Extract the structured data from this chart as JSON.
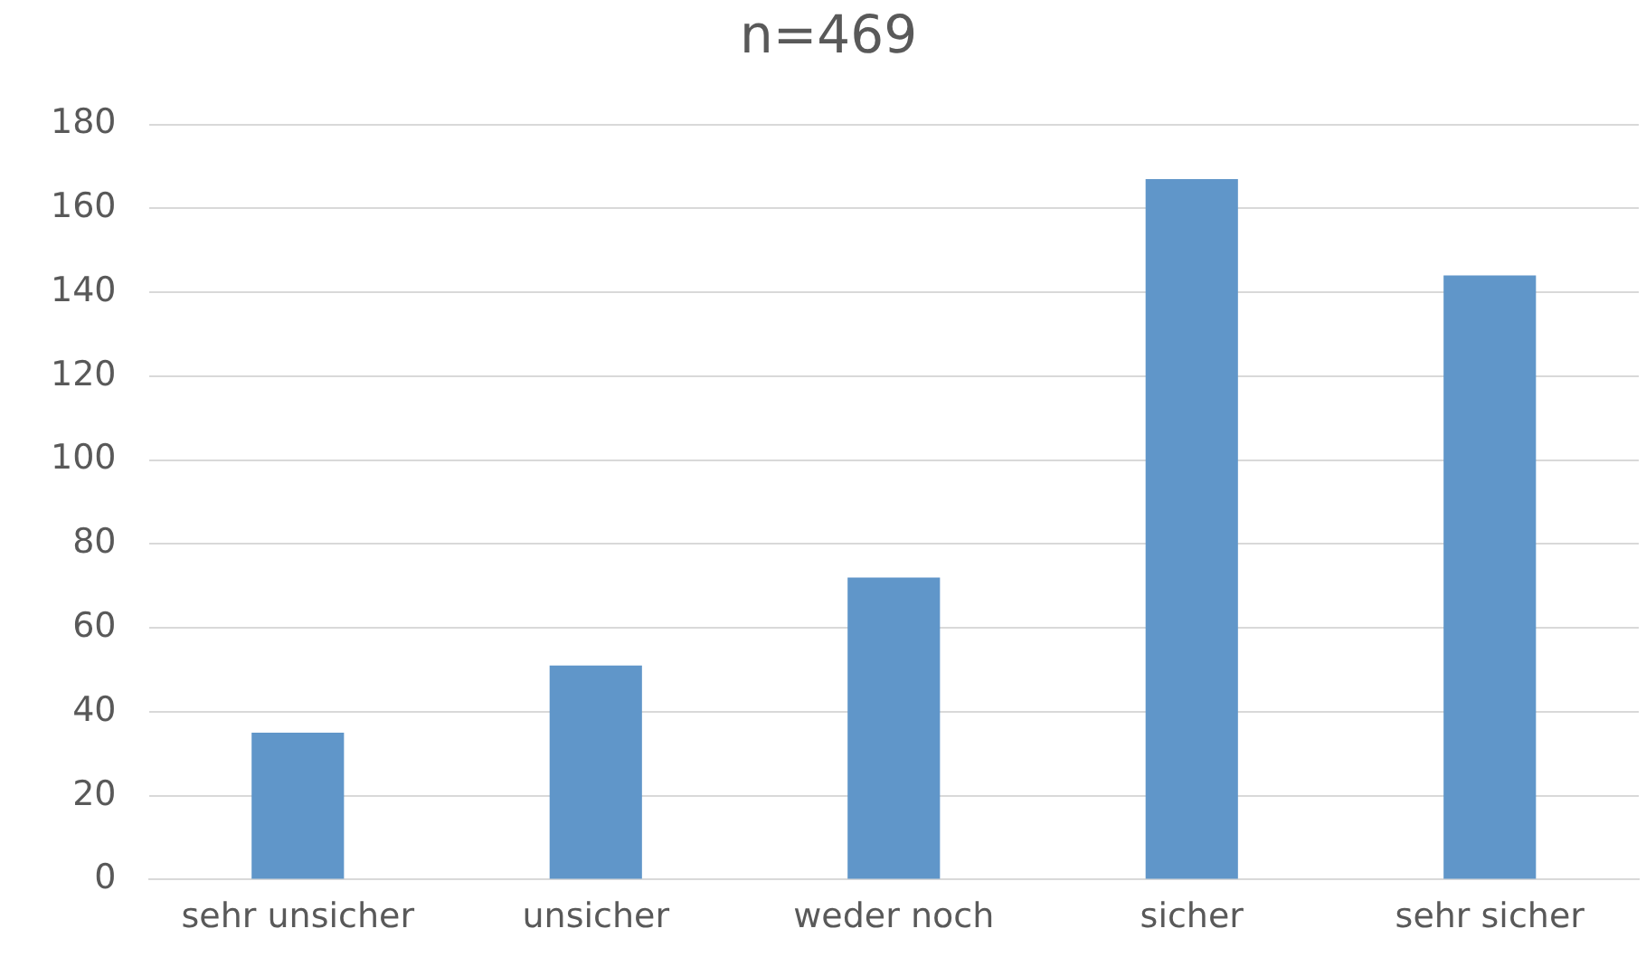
{
  "chart_data": {
    "type": "bar",
    "title": "n=469",
    "categories": [
      "sehr unsicher",
      "unsicher",
      "weder noch",
      "sicher",
      "sehr sicher"
    ],
    "values": [
      35,
      51,
      72,
      167,
      144
    ],
    "color": "#6096c9",
    "ylim": [
      0,
      180
    ],
    "yticks": [
      0,
      20,
      40,
      60,
      80,
      100,
      120,
      140,
      160,
      180
    ],
    "grid": "y",
    "legend": false
  }
}
